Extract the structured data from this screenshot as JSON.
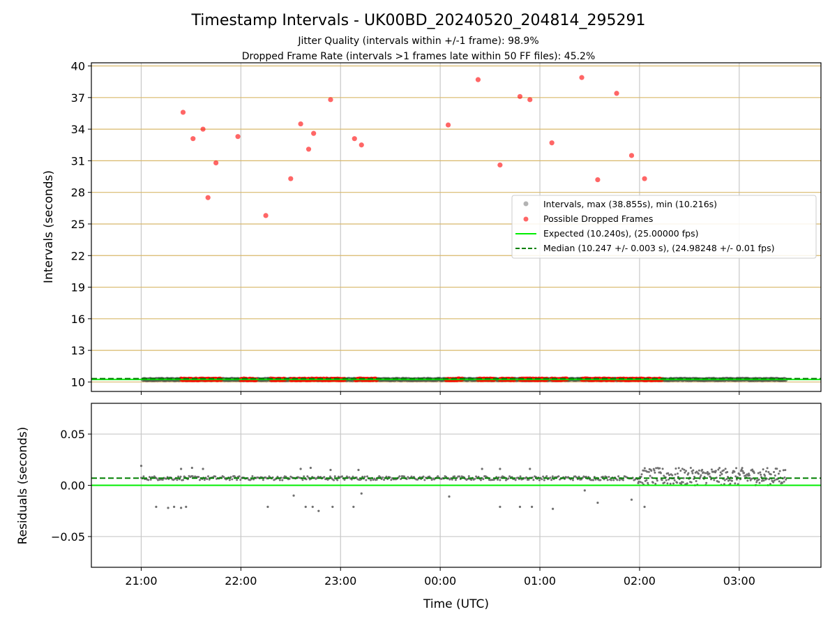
{
  "chart_data": [
    {
      "type": "scatter",
      "title": "Timestamp Intervals - UK00BD_20240520_204814_295291",
      "subtitle_lines": [
        "Jitter Quality (intervals within +/-1 frame): 98.9%",
        "Dropped Frame Rate (intervals >1 frames late within 50 FF files): 45.2%"
      ],
      "xlabel": "",
      "ylabel": "Intervals (seconds)",
      "x_unit": "hours since 00:00 UTC (negative = previous day)",
      "xlim": [
        -3.5,
        3.82
      ],
      "ylim": [
        9.1,
        40.3
      ],
      "yticks": [
        10,
        13,
        16,
        19,
        22,
        25,
        28,
        31,
        34,
        37,
        40
      ],
      "grid": "horizontal gold lines on y ticks, vertical gray lines on x ticks",
      "legend_position": "center-right",
      "series": [
        {
          "name": "Intervals, max (38.855s), min (10.216s)",
          "color": "#808080",
          "style": "dense points along baseline",
          "x_range": [
            -2.98,
            3.47
          ],
          "y_value": 10.24
        },
        {
          "name": "Possible Dropped Frames",
          "color": "#ff0000",
          "points": [
            [
              -2.58,
              35.6
            ],
            [
              -2.48,
              33.1
            ],
            [
              -2.38,
              34.0
            ],
            [
              -2.33,
              27.5
            ],
            [
              -2.25,
              30.8
            ],
            [
              -2.03,
              33.3
            ],
            [
              -1.75,
              25.8
            ],
            [
              -1.5,
              29.3
            ],
            [
              -1.4,
              34.5
            ],
            [
              -1.32,
              32.1
            ],
            [
              -1.27,
              33.6
            ],
            [
              -1.1,
              36.8
            ],
            [
              -0.86,
              33.1
            ],
            [
              -0.79,
              32.5
            ],
            [
              0.08,
              34.4
            ],
            [
              0.38,
              38.7
            ],
            [
              0.6,
              30.6
            ],
            [
              0.8,
              37.1
            ],
            [
              0.9,
              36.8
            ],
            [
              1.12,
              32.7
            ],
            [
              1.42,
              38.9
            ],
            [
              1.58,
              29.2
            ],
            [
              1.77,
              37.4
            ],
            [
              1.92,
              31.5
            ],
            [
              2.05,
              29.3
            ]
          ],
          "baseline_clusters": [
            [
              -2.6,
              -2.2
            ],
            [
              -2.0,
              -1.84
            ],
            [
              -1.7,
              -1.55
            ],
            [
              -1.5,
              -0.95
            ],
            [
              -0.85,
              -0.63
            ],
            [
              0.06,
              0.23
            ],
            [
              0.38,
              0.55
            ],
            [
              0.6,
              0.75
            ],
            [
              0.8,
              1.08
            ],
            [
              1.12,
              1.28
            ],
            [
              1.42,
              1.75
            ],
            [
              1.78,
              2.22
            ]
          ],
          "baseline_y": 10.25
        },
        {
          "name": "Expected (10.240s), (25.00000 fps)",
          "color": "#00ee00",
          "y": 10.24,
          "style": "solid"
        },
        {
          "name": "Median (10.247 +/- 0.003 s), (24.98248 +/- 0.01 fps)",
          "color": "#008000",
          "y": 10.247,
          "style": "dashed"
        }
      ]
    },
    {
      "type": "scatter",
      "xlabel": "Time (UTC)",
      "ylabel": "Residuals (seconds)",
      "xlim": [
        -3.5,
        3.82
      ],
      "ylim": [
        -0.08,
        0.08
      ],
      "yticks": [
        0.05,
        0.0,
        -0.05
      ],
      "ytick_labels": [
        "0.05",
        "0.00",
        "−0.05"
      ],
      "xticks": [
        -3,
        -2,
        -1,
        0,
        1,
        2,
        3
      ],
      "xtick_labels": [
        "21:00",
        "22:00",
        "23:00",
        "00:00",
        "01:00",
        "02:00",
        "03:00"
      ],
      "grid": "on",
      "lines": [
        {
          "y": 0.0,
          "color": "#00ee00",
          "style": "solid"
        },
        {
          "y": 0.007,
          "color": "#008000",
          "style": "dashed"
        }
      ],
      "points": [
        [
          -2.85,
          -0.021
        ],
        [
          -2.73,
          -0.022
        ],
        [
          -2.67,
          -0.021
        ],
        [
          -2.6,
          -0.022
        ],
        [
          -2.55,
          -0.021
        ],
        [
          -1.73,
          -0.021
        ],
        [
          -1.47,
          -0.01
        ],
        [
          -1.35,
          -0.021
        ],
        [
          -1.28,
          -0.021
        ],
        [
          -1.22,
          -0.025
        ],
        [
          -1.08,
          -0.021
        ],
        [
          -0.87,
          -0.021
        ],
        [
          -0.79,
          -0.008
        ],
        [
          0.09,
          -0.011
        ],
        [
          0.6,
          -0.021
        ],
        [
          0.8,
          -0.021
        ],
        [
          0.92,
          -0.021
        ],
        [
          1.13,
          -0.023
        ],
        [
          1.45,
          -0.005
        ],
        [
          1.58,
          -0.017
        ],
        [
          1.92,
          -0.014
        ],
        [
          2.05,
          -0.021
        ],
        [
          -3.0,
          0.019
        ],
        [
          -2.6,
          0.016
        ],
        [
          -2.49,
          0.017
        ],
        [
          -2.38,
          0.016
        ],
        [
          -1.4,
          0.016
        ],
        [
          -1.3,
          0.017
        ],
        [
          -1.1,
          0.015
        ],
        [
          -0.82,
          0.015
        ],
        [
          0.42,
          0.016
        ],
        [
          0.6,
          0.016
        ],
        [
          0.9,
          0.016
        ]
      ],
      "dense_band": {
        "x_range": [
          1.98,
          3.47
        ],
        "y_range": [
          0.0,
          0.017
        ]
      },
      "baseline_band": {
        "x_range": [
          -3.0,
          1.98
        ],
        "y": 0.007
      }
    }
  ]
}
